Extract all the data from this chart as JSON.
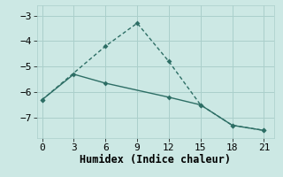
{
  "line1_x": [
    0,
    6,
    9,
    12,
    15,
    18,
    21
  ],
  "line1_y": [
    -6.3,
    -4.2,
    -3.3,
    -4.8,
    -6.5,
    -7.3,
    -7.5
  ],
  "line2_x": [
    0,
    3,
    6,
    12,
    15,
    18,
    21
  ],
  "line2_y": [
    -6.3,
    -5.3,
    -5.65,
    -6.2,
    -6.5,
    -7.3,
    -7.5
  ],
  "line_color": "#2d6e65",
  "bg_color": "#cce8e4",
  "grid_color": "#aacfcb",
  "xlabel": "Humidex (Indice chaleur)",
  "xlim": [
    -0.5,
    22
  ],
  "ylim": [
    -7.8,
    -2.6
  ],
  "xticks": [
    0,
    3,
    6,
    9,
    12,
    15,
    18,
    21
  ],
  "yticks": [
    -7,
    -6,
    -5,
    -4,
    -3
  ],
  "tick_font_size": 8,
  "label_font_size": 8.5,
  "linewidth": 1.0,
  "markersize": 3.0
}
